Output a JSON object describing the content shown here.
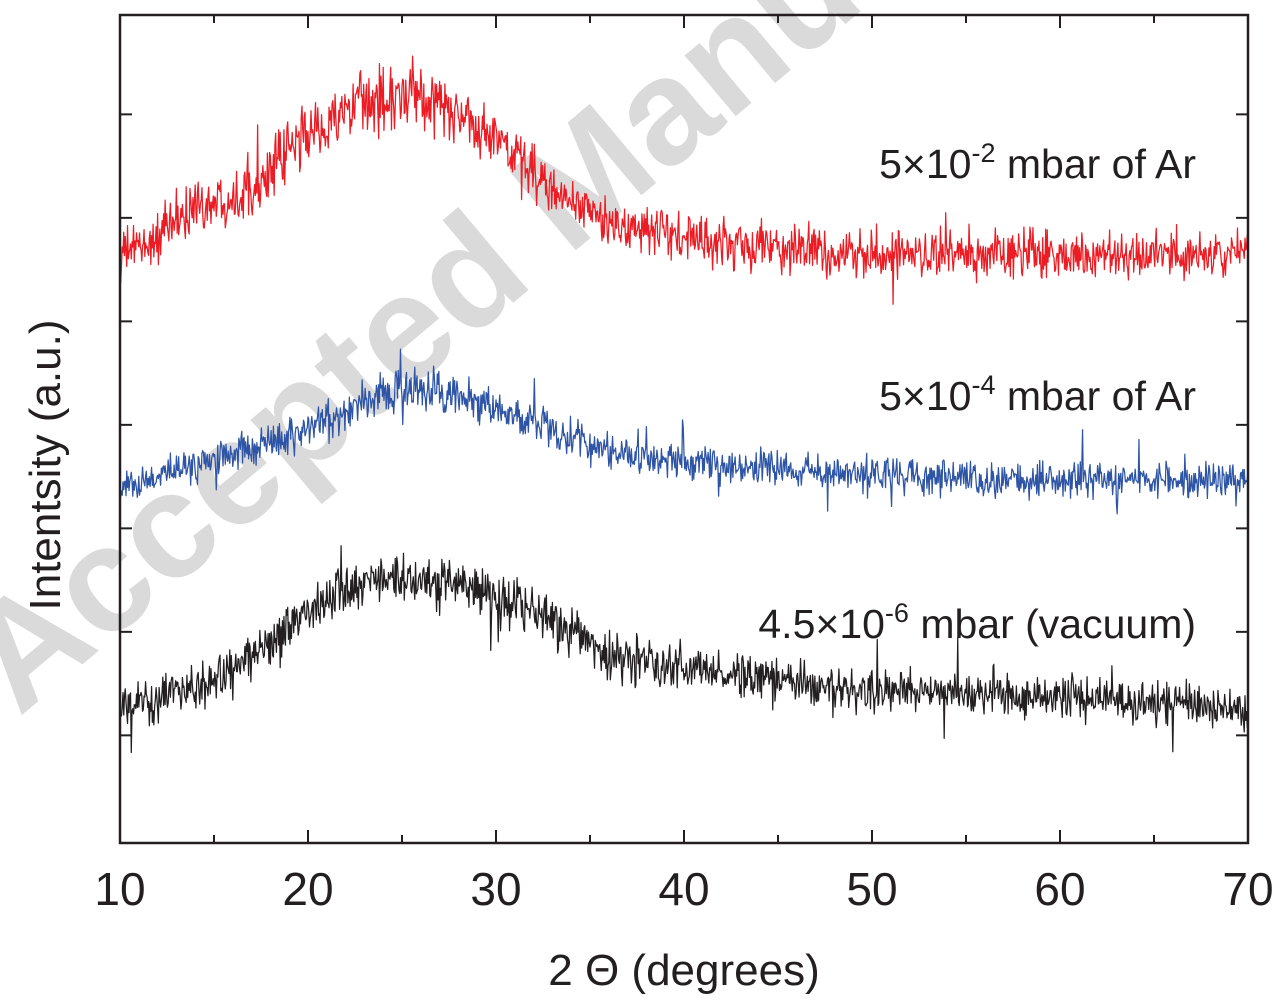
{
  "watermark": "Accepted Manuscript",
  "chart_data": {
    "type": "line",
    "xlabel": "2 Θ (degrees)",
    "ylabel": "Intentsity (a.u.)",
    "xlim": [
      10,
      70
    ],
    "ylim": [
      0,
      100
    ],
    "x_ticks": [
      "10",
      "20",
      "30",
      "40",
      "50",
      "60",
      "70"
    ],
    "y_tick_labels_shown": false,
    "grid": false,
    "legend": "inline labels to the right of each trace",
    "series": [
      {
        "id": "red",
        "color": "#ec1c24",
        "label_base": "5×10",
        "label_exp": "-2",
        "label_suffix": " mbar of Ar",
        "x": [
          10,
          12,
          14,
          16,
          18,
          20,
          22,
          24,
          26,
          28,
          30,
          32,
          34,
          36,
          38,
          40,
          45,
          50,
          55,
          60,
          65,
          70
        ],
        "values": [
          71,
          73,
          77,
          78,
          81,
          86,
          88,
          90,
          90,
          88,
          85,
          81,
          77,
          75,
          74,
          73,
          72,
          71,
          71,
          71,
          71,
          71
        ],
        "noise_amplitude": 5.0
      },
      {
        "id": "blue",
        "color": "#2e55a5",
        "label_base": "5×10",
        "label_exp": "-4",
        "label_suffix": " mbar of Ar",
        "x": [
          10,
          12,
          14,
          16,
          18,
          20,
          22,
          24,
          26,
          28,
          30,
          32,
          34,
          36,
          38,
          40,
          45,
          50,
          55,
          60,
          65,
          70
        ],
        "values": [
          43,
          44,
          46,
          47,
          48.5,
          50,
          52,
          54,
          54.5,
          54,
          52.5,
          51,
          49,
          47.5,
          46.5,
          46,
          45,
          44.5,
          44,
          44,
          44,
          44
        ],
        "noise_amplitude": 3.6
      },
      {
        "id": "black",
        "color": "#231f20",
        "label_base": "4.5×10",
        "label_exp": "-6",
        "label_suffix": " mbar (vacuum)",
        "x": [
          10,
          12,
          14,
          16,
          18,
          20,
          22,
          24,
          26,
          28,
          30,
          32,
          34,
          36,
          38,
          40,
          45,
          50,
          55,
          60,
          65,
          70
        ],
        "values": [
          16,
          17.5,
          19,
          21,
          24,
          28,
          30.5,
          32,
          32,
          31,
          29.5,
          28,
          25.5,
          23,
          22,
          21,
          19.5,
          18.5,
          18,
          17.5,
          17,
          16
        ],
        "noise_amplitude": 4.2
      }
    ]
  }
}
